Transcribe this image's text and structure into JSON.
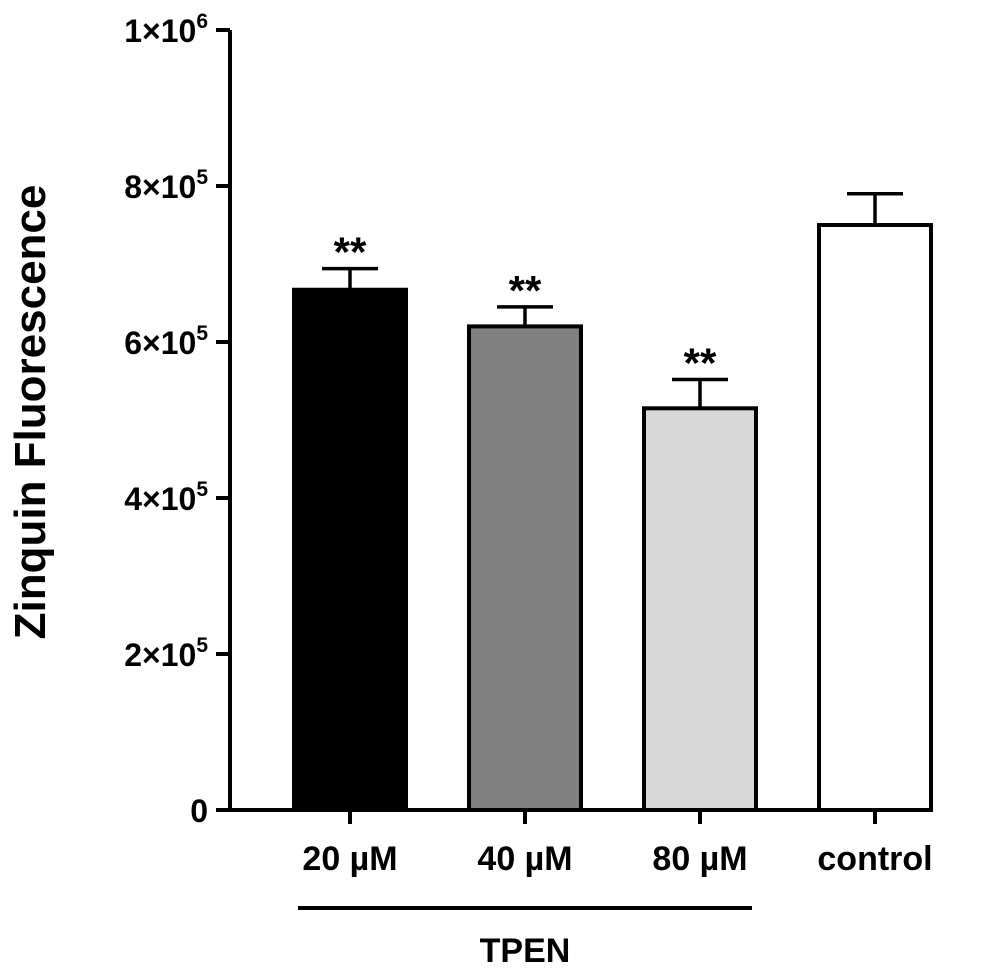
{
  "chart_data": {
    "type": "bar",
    "title": "",
    "xlabel": "",
    "ylabel": "Zinquin Fluorescence",
    "ylim": [
      0,
      1000000
    ],
    "grid": false,
    "yticks": [
      {
        "value": 0,
        "mantissa": "0",
        "exponent": ""
      },
      {
        "value": 200000,
        "mantissa": "2×10",
        "exponent": "5"
      },
      {
        "value": 400000,
        "mantissa": "4×10",
        "exponent": "5"
      },
      {
        "value": 600000,
        "mantissa": "6×10",
        "exponent": "5"
      },
      {
        "value": 800000,
        "mantissa": "8×10",
        "exponent": "5"
      },
      {
        "value": 1000000,
        "mantissa": "1×10",
        "exponent": "6"
      }
    ],
    "categories": [
      "20 µM",
      "40 µM",
      "80 µM",
      "control"
    ],
    "values": [
      667000,
      620000,
      515000,
      750000
    ],
    "errors": [
      27000,
      25000,
      37000,
      40000
    ],
    "bar_colors": [
      "#000000",
      "#808080",
      "#d9d9d9",
      "#ffffff"
    ],
    "annotations": [
      "**",
      "**",
      "**",
      ""
    ],
    "group": {
      "label": "TPEN",
      "categories": [
        "20 µM",
        "40 µM",
        "80 µM"
      ]
    }
  }
}
